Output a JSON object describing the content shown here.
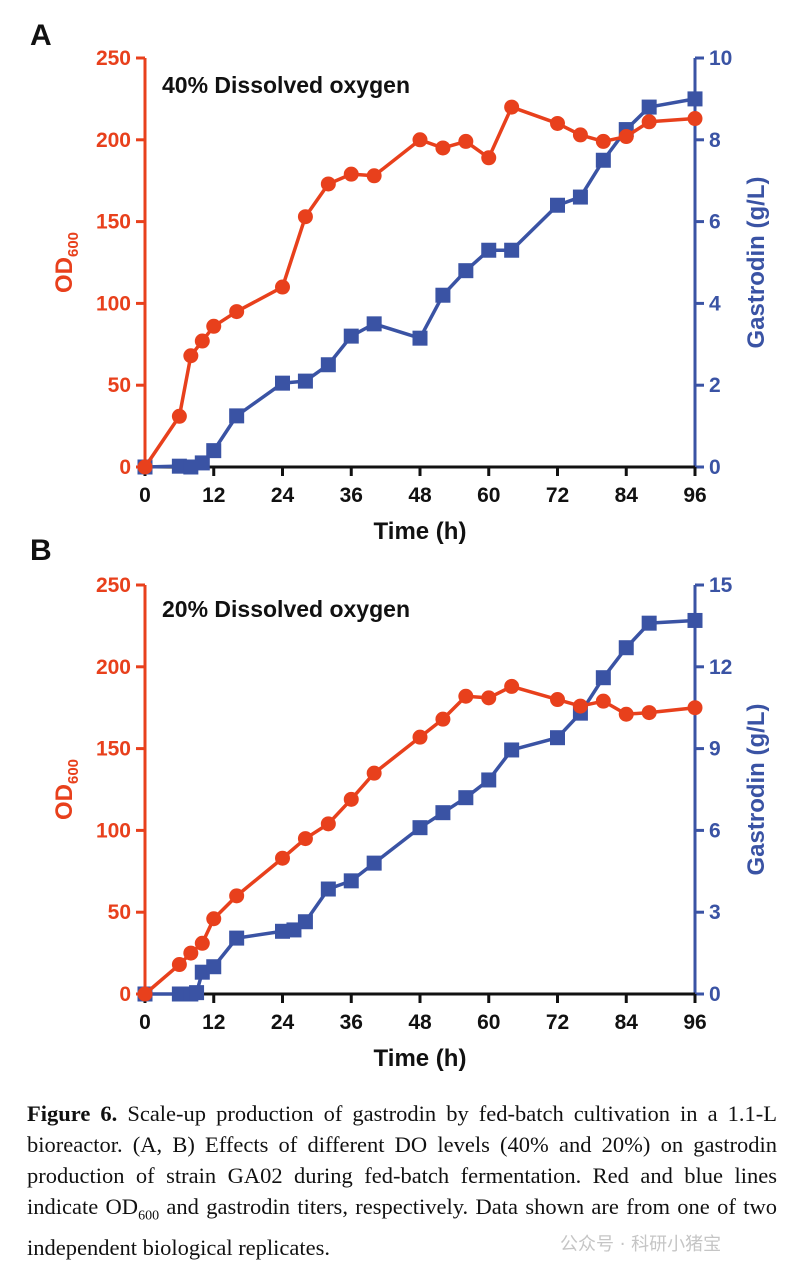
{
  "colors": {
    "od": "#e8401c",
    "gastrodin": "#3a53a4",
    "axis": "#111111"
  },
  "chart_data": [
    {
      "panel": "A",
      "type": "line",
      "title": "40% Dissolved oxygen",
      "xlabel": "Time (h)",
      "ylabel_left_main": "OD",
      "ylabel_left_sub": "600",
      "ylabel_right": "Gastrodin (g/L)",
      "xlim": [
        0,
        96
      ],
      "xticks": [
        "0",
        "12",
        "24",
        "36",
        "48",
        "60",
        "72",
        "84",
        "96"
      ],
      "ylim_left": [
        0,
        250
      ],
      "yticks_left": [
        "0",
        "50",
        "100",
        "150",
        "200",
        "250"
      ],
      "ylim_right": [
        0,
        10
      ],
      "yticks_right": [
        "0",
        "2",
        "4",
        "6",
        "8",
        "10"
      ],
      "series": [
        {
          "name": "OD600",
          "axis": "left",
          "marker": "circle",
          "x": [
            0,
            6,
            8,
            10,
            12,
            16,
            24,
            28,
            32,
            36,
            40,
            48,
            52,
            56,
            60,
            64,
            72,
            76,
            80,
            84,
            88,
            96
          ],
          "y": [
            0,
            31,
            68,
            77,
            86,
            95,
            110,
            153,
            173,
            179,
            178,
            200,
            195,
            199,
            189,
            220,
            210,
            203,
            199,
            202,
            211,
            213
          ]
        },
        {
          "name": "Gastrodin",
          "axis": "right",
          "marker": "square",
          "x": [
            0,
            6,
            8,
            10,
            12,
            16,
            24,
            28,
            32,
            36,
            40,
            48,
            52,
            56,
            60,
            64,
            72,
            76,
            80,
            84,
            88,
            96
          ],
          "y": [
            0,
            0.02,
            0,
            0.1,
            0.4,
            1.25,
            2.05,
            2.1,
            2.5,
            3.2,
            3.5,
            3.15,
            4.2,
            4.8,
            5.3,
            5.3,
            6.4,
            6.6,
            7.5,
            8.25,
            8.8,
            9.0
          ]
        }
      ]
    },
    {
      "panel": "B",
      "type": "line",
      "title": "20% Dissolved oxygen",
      "xlabel": "Time (h)",
      "ylabel_left_main": "OD",
      "ylabel_left_sub": "600",
      "ylabel_right": "Gastrodin (g/L)",
      "xlim": [
        0,
        96
      ],
      "xticks": [
        "0",
        "12",
        "24",
        "36",
        "48",
        "60",
        "72",
        "84",
        "96"
      ],
      "ylim_left": [
        0,
        250
      ],
      "yticks_left": [
        "0",
        "50",
        "100",
        "150",
        "200",
        "250"
      ],
      "ylim_right": [
        0,
        15
      ],
      "yticks_right": [
        "0",
        "3",
        "6",
        "9",
        "12",
        "15"
      ],
      "series": [
        {
          "name": "OD600",
          "axis": "left",
          "marker": "circle",
          "x": [
            0,
            6,
            8,
            10,
            12,
            16,
            24,
            28,
            32,
            36,
            40,
            48,
            52,
            56,
            60,
            64,
            72,
            76,
            80,
            84,
            88,
            96
          ],
          "y": [
            0,
            18,
            25,
            31,
            46,
            60,
            83,
            95,
            104,
            119,
            135,
            157,
            168,
            182,
            181,
            188,
            180,
            176,
            179,
            171,
            172,
            175
          ]
        },
        {
          "name": "Gastrodin",
          "axis": "right",
          "marker": "square",
          "x": [
            0,
            6,
            8,
            9,
            10,
            12,
            16,
            24,
            26,
            28,
            32,
            36,
            40,
            48,
            52,
            56,
            60,
            64,
            72,
            76,
            80,
            84,
            88,
            96
          ],
          "y": [
            0,
            0,
            0,
            0.05,
            0.8,
            1.0,
            2.05,
            2.3,
            2.35,
            2.65,
            3.85,
            4.15,
            4.8,
            6.1,
            6.65,
            7.2,
            7.85,
            8.95,
            9.4,
            10.3,
            11.6,
            12.7,
            13.6,
            13.7
          ]
        }
      ]
    }
  ],
  "caption": {
    "label": "Figure 6.",
    "text_1": " Scale-up production of gastrodin by fed-batch cultivation in a 1.1-L bioreactor. (A, B) Effects of different DO levels (40% and 20%) on gastrodin production of strain GA02 during fed-batch fermentation. Red and blue lines indicate OD",
    "sub": "600",
    "text_2": " and gastrodin titers, respectively. Data shown are from one of two independent biological replicates."
  },
  "watermark": "公众号 · 科研小猪宝"
}
